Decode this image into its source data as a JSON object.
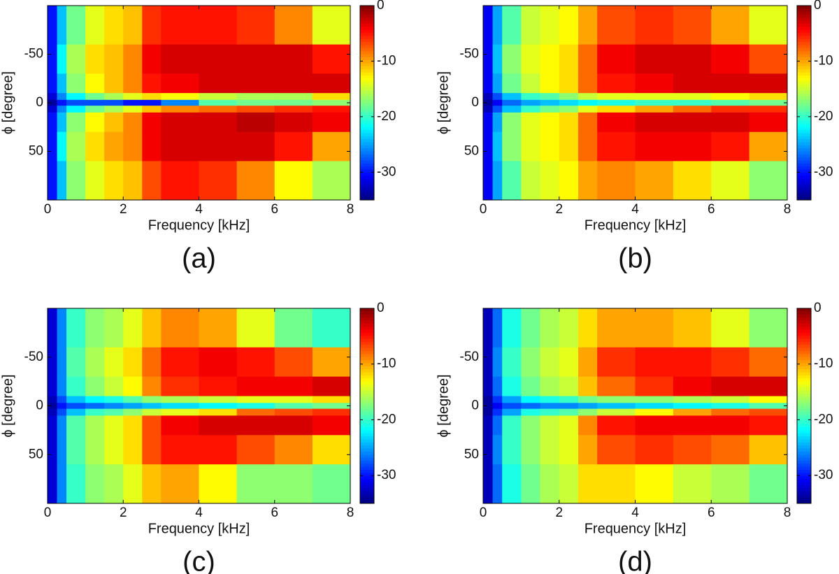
{
  "chart_data": [
    {
      "type": "heatmap",
      "caption": "(a)",
      "xlabel": "Frequency [kHz]",
      "ylabel": "ϕ [degree]",
      "colormap": "jet",
      "xlim": [
        0,
        8
      ],
      "ylim": [
        100,
        -100
      ],
      "xticks": [
        0,
        2,
        4,
        6,
        8
      ],
      "yticks": [
        -50,
        0,
        50
      ],
      "clim": [
        -35,
        0
      ],
      "cticks": [
        0,
        -10,
        -20,
        -30
      ],
      "x_bins": [
        0,
        0.25,
        0.5,
        1,
        1.5,
        2,
        2.5,
        3,
        4,
        5,
        6,
        7,
        8
      ],
      "y_bins": [
        -100,
        -60,
        -30,
        -10,
        -3,
        3,
        10,
        30,
        60,
        100
      ],
      "z": [
        [
          -30,
          -24,
          -18,
          -14,
          -12,
          -11,
          -6,
          -5,
          -5,
          -6,
          -9,
          -14
        ],
        [
          -30,
          -22,
          -16,
          -12,
          -11,
          -9,
          -4,
          -3,
          -3,
          -3,
          -3,
          -5
        ],
        [
          -30,
          -24,
          -17,
          -13,
          -11,
          -9,
          -5,
          -4,
          -3,
          -3,
          -3,
          -3
        ],
        [
          -32,
          -26,
          -22,
          -18,
          -16,
          -14,
          -12,
          -13,
          -15,
          -16,
          -16,
          -12
        ],
        [
          -34,
          -30,
          -28,
          -28,
          -28,
          -30,
          -30,
          -26,
          -19,
          -18,
          -18,
          -17
        ],
        [
          -32,
          -26,
          -22,
          -18,
          -16,
          -14,
          -11,
          -9,
          -8,
          -7,
          -6,
          -5
        ],
        [
          -30,
          -24,
          -17,
          -13,
          -11,
          -9,
          -4,
          -3,
          -3,
          -2,
          -3,
          -4
        ],
        [
          -30,
          -22,
          -16,
          -12,
          -10,
          -9,
          -4,
          -3,
          -3,
          -3,
          -5,
          -10
        ],
        [
          -30,
          -24,
          -17,
          -14,
          -12,
          -11,
          -7,
          -5,
          -6,
          -9,
          -13,
          -16
        ]
      ]
    },
    {
      "type": "heatmap",
      "caption": "(b)",
      "xlabel": "Frequency [kHz]",
      "ylabel": "ϕ [degree]",
      "colormap": "jet",
      "xlim": [
        0,
        8
      ],
      "ylim": [
        100,
        -100
      ],
      "xticks": [
        0,
        2,
        4,
        6,
        8
      ],
      "yticks": [
        -50,
        0,
        50
      ],
      "clim": [
        -35,
        0
      ],
      "cticks": [
        0,
        -10,
        -20,
        -30
      ],
      "x_bins": [
        0,
        0.25,
        0.5,
        1,
        1.5,
        2,
        2.5,
        3,
        4,
        5,
        6,
        7,
        8
      ],
      "y_bins": [
        -100,
        -60,
        -30,
        -10,
        -3,
        3,
        10,
        30,
        60,
        100
      ],
      "z": [
        [
          -31,
          -25,
          -19,
          -15,
          -14,
          -13,
          -10,
          -7,
          -6,
          -7,
          -10,
          -14
        ],
        [
          -31,
          -24,
          -17,
          -14,
          -13,
          -12,
          -8,
          -4,
          -3,
          -3,
          -4,
          -7
        ],
        [
          -31,
          -25,
          -18,
          -15,
          -13,
          -12,
          -8,
          -5,
          -4,
          -3,
          -3,
          -3
        ],
        [
          -33,
          -28,
          -24,
          -20,
          -19,
          -17,
          -15,
          -14,
          -14,
          -14,
          -13,
          -12
        ],
        [
          -34,
          -31,
          -27,
          -25,
          -24,
          -23,
          -22,
          -21,
          -20,
          -20,
          -19,
          -18
        ],
        [
          -33,
          -28,
          -24,
          -20,
          -18,
          -17,
          -14,
          -12,
          -10,
          -8,
          -6,
          -6
        ],
        [
          -31,
          -25,
          -17,
          -14,
          -13,
          -12,
          -8,
          -4,
          -3,
          -3,
          -3,
          -4
        ],
        [
          -31,
          -24,
          -17,
          -14,
          -13,
          -12,
          -8,
          -5,
          -4,
          -4,
          -5,
          -10
        ],
        [
          -31,
          -25,
          -19,
          -15,
          -14,
          -13,
          -10,
          -9,
          -10,
          -12,
          -14,
          -17
        ]
      ]
    },
    {
      "type": "heatmap",
      "caption": "(c)",
      "xlabel": "Frequency [kHz]",
      "ylabel": "ϕ [degree]",
      "colormap": "jet",
      "xlim": [
        0,
        8
      ],
      "ylim": [
        100,
        -100
      ],
      "xticks": [
        0,
        2,
        4,
        6,
        8
      ],
      "yticks": [
        -50,
        0,
        50
      ],
      "clim": [
        -35,
        0
      ],
      "cticks": [
        0,
        -10,
        -20,
        -30
      ],
      "x_bins": [
        0,
        0.25,
        0.5,
        1,
        1.5,
        2,
        2.5,
        3,
        4,
        5,
        6,
        7,
        8
      ],
      "y_bins": [
        -100,
        -60,
        -30,
        -10,
        -3,
        3,
        10,
        30,
        60,
        100
      ],
      "z": [
        [
          -32,
          -26,
          -20,
          -17,
          -16,
          -14,
          -11,
          -9,
          -10,
          -14,
          -18,
          -20
        ],
        [
          -32,
          -26,
          -19,
          -16,
          -14,
          -12,
          -8,
          -5,
          -4,
          -5,
          -7,
          -10
        ],
        [
          -32,
          -26,
          -20,
          -17,
          -15,
          -13,
          -9,
          -6,
          -5,
          -4,
          -4,
          -3
        ],
        [
          -33,
          -28,
          -24,
          -22,
          -21,
          -19,
          -17,
          -16,
          -15,
          -14,
          -14,
          -12
        ],
        [
          -34,
          -30,
          -28,
          -27,
          -26,
          -25,
          -24,
          -23,
          -22,
          -21,
          -19,
          -18
        ],
        [
          -33,
          -28,
          -24,
          -20,
          -19,
          -17,
          -15,
          -14,
          -12,
          -8,
          -7,
          -6
        ],
        [
          -32,
          -26,
          -19,
          -16,
          -14,
          -12,
          -7,
          -4,
          -3,
          -3,
          -3,
          -4
        ],
        [
          -32,
          -26,
          -19,
          -16,
          -14,
          -12,
          -7,
          -5,
          -5,
          -7,
          -9,
          -12
        ],
        [
          -32,
          -26,
          -20,
          -17,
          -16,
          -14,
          -11,
          -10,
          -13,
          -17,
          -17,
          -18
        ]
      ]
    },
    {
      "type": "heatmap",
      "caption": "(d)",
      "xlabel": "Frequency [kHz]",
      "ylabel": "ϕ [degree]",
      "colormap": "jet",
      "xlim": [
        0,
        8
      ],
      "ylim": [
        100,
        -100
      ],
      "xticks": [
        0,
        2,
        4,
        6,
        8
      ],
      "yticks": [
        -50,
        0,
        50
      ],
      "clim": [
        -35,
        0
      ],
      "cticks": [
        0,
        -10,
        -20,
        -30
      ],
      "x_bins": [
        0,
        0.25,
        0.5,
        1,
        1.5,
        2,
        2.5,
        3,
        4,
        5,
        6,
        7,
        8
      ],
      "y_bins": [
        -100,
        -60,
        -30,
        -10,
        -3,
        3,
        10,
        30,
        60,
        100
      ],
      "z": [
        [
          -33,
          -27,
          -21,
          -18,
          -16,
          -15,
          -12,
          -10,
          -10,
          -11,
          -14,
          -17
        ],
        [
          -33,
          -26,
          -20,
          -17,
          -15,
          -14,
          -10,
          -6,
          -5,
          -5,
          -6,
          -8
        ],
        [
          -33,
          -27,
          -21,
          -18,
          -16,
          -15,
          -11,
          -8,
          -6,
          -4,
          -3,
          -3
        ],
        [
          -34,
          -29,
          -25,
          -22,
          -21,
          -20,
          -18,
          -17,
          -17,
          -16,
          -15,
          -13
        ],
        [
          -34,
          -31,
          -28,
          -27,
          -26,
          -26,
          -25,
          -24,
          -23,
          -22,
          -21,
          -19
        ],
        [
          -34,
          -29,
          -25,
          -21,
          -20,
          -19,
          -17,
          -15,
          -13,
          -10,
          -8,
          -7
        ],
        [
          -33,
          -27,
          -20,
          -17,
          -15,
          -14,
          -9,
          -5,
          -4,
          -4,
          -4,
          -5
        ],
        [
          -33,
          -26,
          -20,
          -17,
          -15,
          -14,
          -10,
          -7,
          -6,
          -7,
          -8,
          -11
        ],
        [
          -33,
          -27,
          -21,
          -18,
          -16,
          -15,
          -12,
          -12,
          -13,
          -15,
          -16,
          -18
        ]
      ]
    }
  ]
}
